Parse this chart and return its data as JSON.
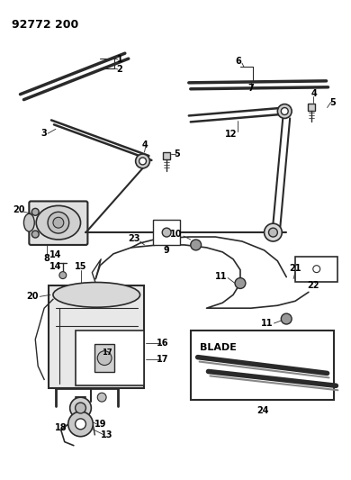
{
  "title": "92772 200",
  "bg": "#ffffff",
  "lc": "#2a2a2a",
  "fig_w": 3.9,
  "fig_h": 5.33,
  "dpi": 100
}
